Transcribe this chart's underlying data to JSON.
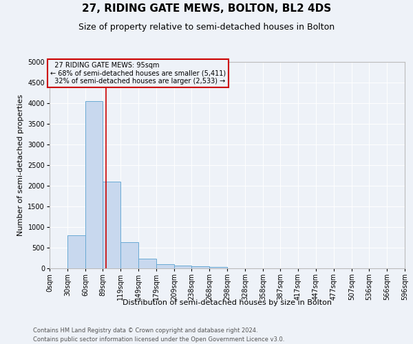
{
  "title": "27, RIDING GATE MEWS, BOLTON, BL2 4DS",
  "subtitle": "Size of property relative to semi-detached houses in Bolton",
  "xlabel": "Distribution of semi-detached houses by size in Bolton",
  "ylabel": "Number of semi-detached properties",
  "bar_color": "#c8d8ee",
  "bar_edge_color": "#6aaad4",
  "bin_edges": [
    0,
    30,
    60,
    89,
    119,
    149,
    179,
    209,
    238,
    268,
    298,
    328,
    358,
    387,
    417,
    447,
    477,
    507,
    536,
    566,
    596
  ],
  "bin_labels": [
    "0sqm",
    "30sqm",
    "60sqm",
    "89sqm",
    "119sqm",
    "149sqm",
    "179sqm",
    "209sqm",
    "238sqm",
    "268sqm",
    "298sqm",
    "328sqm",
    "358sqm",
    "387sqm",
    "417sqm",
    "447sqm",
    "477sqm",
    "507sqm",
    "536sqm",
    "566sqm",
    "596sqm"
  ],
  "bar_heights": [
    0,
    800,
    4050,
    2100,
    630,
    230,
    100,
    60,
    55,
    30,
    0,
    0,
    0,
    0,
    0,
    0,
    0,
    0,
    0,
    0
  ],
  "property_size": 95,
  "property_label": "27 RIDING GATE MEWS: 95sqm",
  "pct_smaller": 68,
  "pct_larger": 32,
  "n_smaller": 5411,
  "n_larger": 2533,
  "vline_color": "#cc0000",
  "annotation_box_color": "#cc0000",
  "ylim": [
    0,
    5000
  ],
  "yticks": [
    0,
    500,
    1000,
    1500,
    2000,
    2500,
    3000,
    3500,
    4000,
    4500,
    5000
  ],
  "footnote_line1": "Contains HM Land Registry data © Crown copyright and database right 2024.",
  "footnote_line2": "Contains public sector information licensed under the Open Government Licence v3.0.",
  "background_color": "#eef2f8",
  "grid_color": "#ffffff",
  "title_fontsize": 11,
  "subtitle_fontsize": 9,
  "axis_label_fontsize": 8,
  "tick_fontsize": 7,
  "footnote_fontsize": 6
}
